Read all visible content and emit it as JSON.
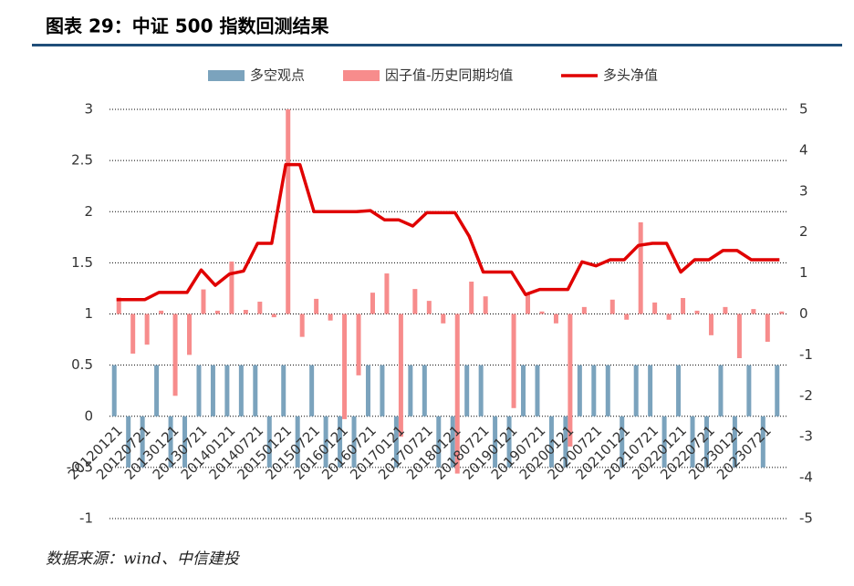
{
  "chart_data": {
    "type": "bar-line",
    "title": "图表 29：中证 500 指数回测结果",
    "source": "数据来源：wind、中信建投",
    "categories": [
      "20120121",
      null,
      "20120721",
      null,
      "20130121",
      null,
      "20130721",
      null,
      "20140121",
      null,
      "20140721",
      null,
      "20150121",
      null,
      "20150721",
      null,
      "20160121",
      null,
      "20160721",
      null,
      "20170121",
      null,
      "20170721",
      null,
      "20180121",
      null,
      "20180721",
      null,
      "20190121",
      null,
      "20190721",
      null,
      "20200121",
      null,
      "20200721",
      null,
      "20210121",
      null,
      "20210721",
      null,
      "20220121",
      null,
      "20220721",
      null,
      "20230121",
      null,
      "20230721",
      null
    ],
    "series": [
      {
        "name": "多空观点",
        "kind": "bar",
        "color": "#7ba3bd",
        "values": [
          0.5,
          -0.5,
          -0.5,
          0.5,
          -0.5,
          -0.5,
          0.5,
          0.5,
          0.5,
          0.5,
          0.5,
          -0.5,
          0.5,
          -0.5,
          0.5,
          -0.5,
          -0.5,
          -0.5,
          0.5,
          0.5,
          -0.5,
          0.5,
          0.5,
          -0.5,
          -0.5,
          0.5,
          0.5,
          -0.5,
          -0.5,
          0.5,
          0.5,
          -0.5,
          -0.5,
          0.5,
          0.5,
          0.5,
          -0.5,
          0.5,
          0.5,
          -0.5,
          0.5,
          -0.5,
          -0.5,
          0.5,
          -0.5,
          0.5,
          -0.5,
          0.5
        ]
      },
      {
        "name": "因子值-历史同期均值",
        "kind": "bar",
        "axis": "y2",
        "color": "#f78c8c",
        "values": [
          0.4,
          -0.97,
          -0.75,
          0.08,
          -2.0,
          -1.0,
          0.6,
          0.08,
          1.28,
          0.1,
          0.3,
          -0.08,
          5.0,
          -0.56,
          0.37,
          -0.16,
          -2.57,
          -1.5,
          0.52,
          0.99,
          -3.0,
          0.61,
          0.32,
          -0.23,
          -3.9,
          0.79,
          0.43,
          0,
          -2.3,
          0.5,
          0.06,
          -0.23,
          -3.24,
          0.17,
          0,
          0.35,
          -0.14,
          2.24,
          0.28,
          -0.14,
          0.39,
          0.08,
          -0.52,
          0.17,
          -1.08,
          0.12,
          -0.68,
          0.06
        ]
      },
      {
        "name": "多头净值",
        "kind": "line",
        "color": "#e00000",
        "values": [
          1.14,
          1.14,
          1.14,
          1.21,
          1.21,
          1.21,
          1.43,
          1.28,
          1.39,
          1.42,
          1.69,
          1.69,
          2.46,
          2.46,
          2.0,
          2.0,
          2.0,
          2.0,
          2.01,
          1.92,
          1.92,
          1.86,
          1.99,
          1.99,
          1.99,
          1.76,
          1.41,
          1.41,
          1.41,
          1.19,
          1.24,
          1.24,
          1.24,
          1.51,
          1.47,
          1.53,
          1.53,
          1.67,
          1.69,
          1.69,
          1.41,
          1.53,
          1.53,
          1.62,
          1.62,
          1.53,
          1.53,
          1.53
        ]
      }
    ],
    "ylim": [
      -1,
      3
    ],
    "yticks": [
      -1,
      -0.5,
      0,
      0.5,
      1,
      1.5,
      2,
      2.5,
      3
    ],
    "y2lim": [
      -5,
      5
    ],
    "y2ticks": [
      -5,
      -4,
      -3,
      -2,
      -1,
      0,
      1,
      2,
      3,
      4,
      5
    ],
    "grid": true,
    "legend": "top"
  }
}
